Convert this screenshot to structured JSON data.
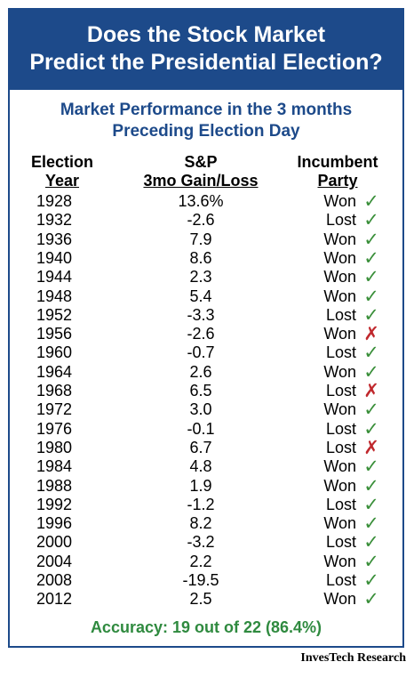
{
  "title_lines": [
    "Does the Stock Market",
    "Predict the Presidential Election?"
  ],
  "subtitle_lines": [
    "Market Performance in the 3 months",
    "Preceding Election Day"
  ],
  "headers": {
    "year": [
      "Election",
      "Year"
    ],
    "sp": [
      "S&P",
      "3mo Gain/Loss"
    ],
    "party": [
      "Incumbent",
      "Party"
    ]
  },
  "chart_data": {
    "type": "table",
    "title": "Does the Stock Market Predict the Presidential Election?",
    "subtitle": "Market Performance in the 3 months Preceding Election Day",
    "columns": [
      "Election Year",
      "S&P 3mo Gain/Loss",
      "Incumbent Party"
    ],
    "rows": [
      {
        "year": "1928",
        "sp": "13.6%",
        "party": "Won",
        "correct": true
      },
      {
        "year": "1932",
        "sp": "-2.6",
        "party": "Lost",
        "correct": true
      },
      {
        "year": "1936",
        "sp": "7.9",
        "party": "Won",
        "correct": true
      },
      {
        "year": "1940",
        "sp": "8.6",
        "party": "Won",
        "correct": true
      },
      {
        "year": "1944",
        "sp": "2.3",
        "party": "Won",
        "correct": true
      },
      {
        "year": "1948",
        "sp": "5.4",
        "party": "Won",
        "correct": true
      },
      {
        "year": "1952",
        "sp": "-3.3",
        "party": "Lost",
        "correct": true
      },
      {
        "year": "1956",
        "sp": "-2.6",
        "party": "Won",
        "correct": false
      },
      {
        "year": "1960",
        "sp": "-0.7",
        "party": "Lost",
        "correct": true
      },
      {
        "year": "1964",
        "sp": "2.6",
        "party": "Won",
        "correct": true
      },
      {
        "year": "1968",
        "sp": "6.5",
        "party": "Lost",
        "correct": false
      },
      {
        "year": "1972",
        "sp": "3.0",
        "party": "Won",
        "correct": true
      },
      {
        "year": "1976",
        "sp": "-0.1",
        "party": "Lost",
        "correct": true
      },
      {
        "year": "1980",
        "sp": "6.7",
        "party": "Lost",
        "correct": false
      },
      {
        "year": "1984",
        "sp": "4.8",
        "party": "Won",
        "correct": true
      },
      {
        "year": "1988",
        "sp": "1.9",
        "party": "Won",
        "correct": true
      },
      {
        "year": "1992",
        "sp": "-1.2",
        "party": "Lost",
        "correct": true
      },
      {
        "year": "1996",
        "sp": "8.2",
        "party": "Won",
        "correct": true
      },
      {
        "year": "2000",
        "sp": "-3.2",
        "party": "Lost",
        "correct": true
      },
      {
        "year": "2004",
        "sp": "2.2",
        "party": "Won",
        "correct": true
      },
      {
        "year": "2008",
        "sp": "-19.5",
        "party": "Lost",
        "correct": true
      },
      {
        "year": "2012",
        "sp": "2.5",
        "party": "Won",
        "correct": true
      }
    ]
  },
  "marks": {
    "correct_glyph": "✓",
    "wrong_glyph": "✗",
    "correct_color": "#3a8f3a",
    "wrong_color": "#c0282d"
  },
  "accuracy": "Accuracy:  19 out of 22 (86.4%)",
  "source": "InvesTech Research",
  "colors": {
    "banner": "#1d4a8a",
    "subtitle": "#1d4a8a",
    "accuracy": "#2f8a3f"
  }
}
